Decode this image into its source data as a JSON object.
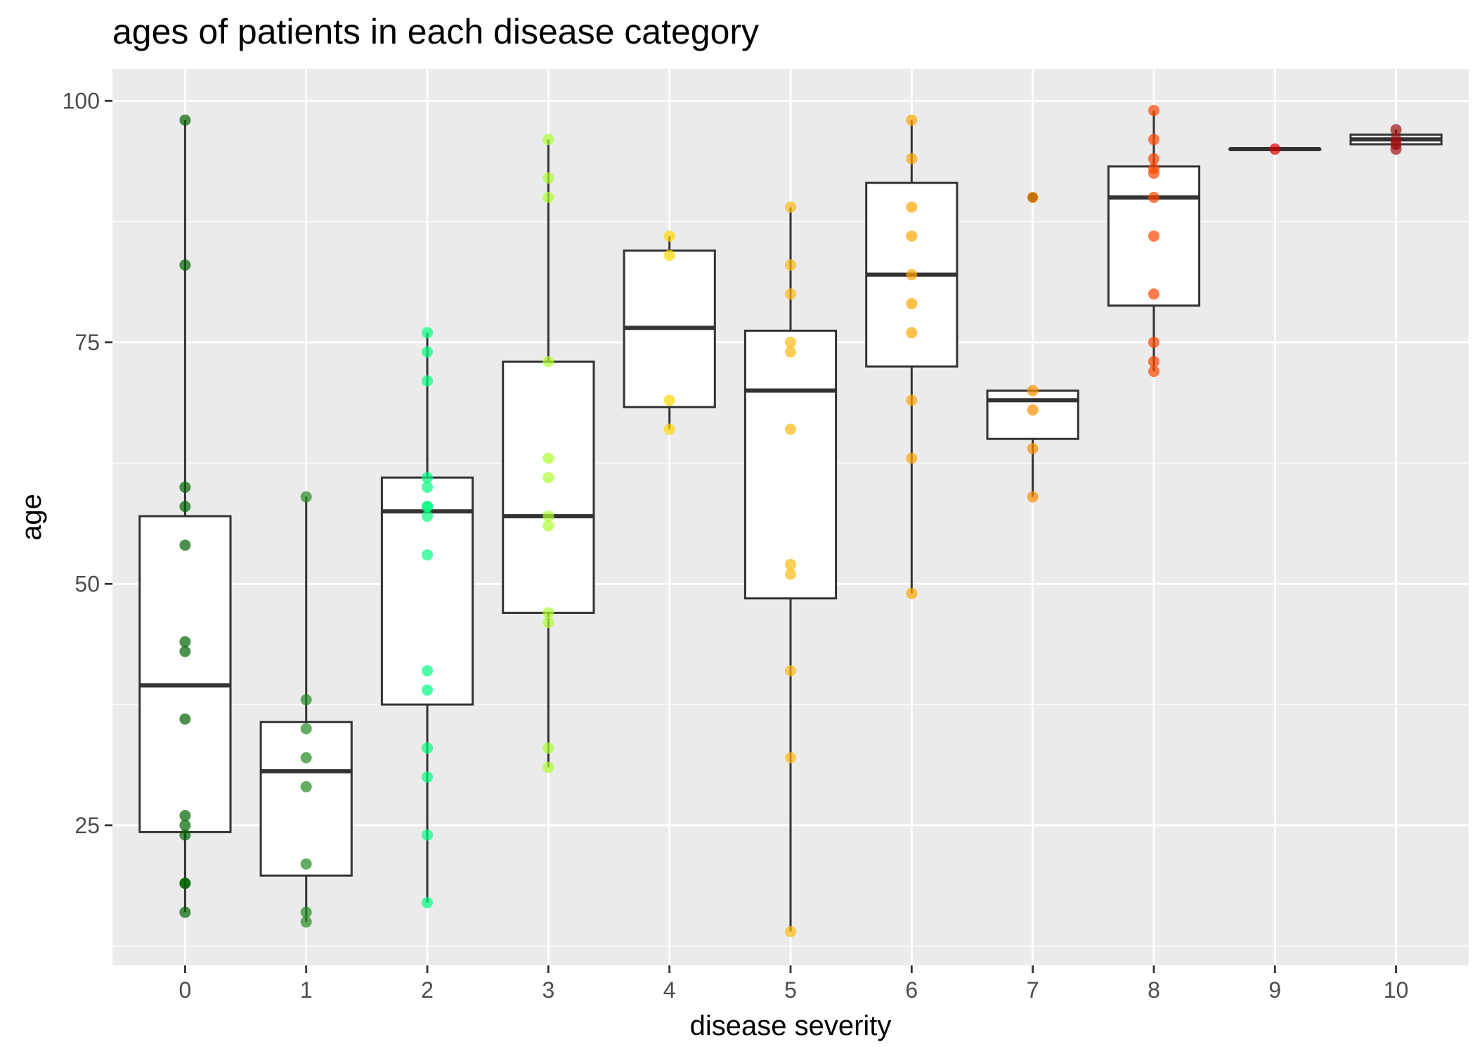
{
  "chart_data": {
    "type": "box",
    "title": "ages of patients in each disease category",
    "xlabel": "disease severity",
    "ylabel": "age",
    "categories": [
      "0",
      "1",
      "2",
      "3",
      "4",
      "5",
      "6",
      "7",
      "8",
      "9",
      "10"
    ],
    "y_ticks": [
      25,
      50,
      75,
      100
    ],
    "ylim": [
      10.5,
      103.3
    ],
    "grid": true,
    "legend": "none",
    "boxes": [
      {
        "category": "0",
        "q1": 24.3,
        "median": 39.5,
        "q3": 57,
        "whisker_low": 16,
        "whisker_high": 98
      },
      {
        "category": "1",
        "q1": 19.8,
        "median": 30.6,
        "q3": 35.7,
        "whisker_low": 15,
        "whisker_high": 59
      },
      {
        "category": "2",
        "q1": 37.5,
        "median": 57.5,
        "q3": 61,
        "whisker_low": 17,
        "whisker_high": 76
      },
      {
        "category": "3",
        "q1": 47,
        "median": 57,
        "q3": 73,
        "whisker_low": 31,
        "whisker_high": 96
      },
      {
        "category": "4",
        "q1": 68.3,
        "median": 76.5,
        "q3": 84.5,
        "whisker_low": 66,
        "whisker_high": 86
      },
      {
        "category": "5",
        "q1": 48.5,
        "median": 70,
        "q3": 76.2,
        "whisker_low": 14,
        "whisker_high": 89
      },
      {
        "category": "6",
        "q1": 72.5,
        "median": 82,
        "q3": 91.5,
        "whisker_low": 49,
        "whisker_high": 98
      },
      {
        "category": "7",
        "q1": 65,
        "median": 69,
        "q3": 70,
        "whisker_low": 59,
        "whisker_high": 70,
        "outliers": [
          90
        ]
      },
      {
        "category": "8",
        "q1": 78.8,
        "median": 90,
        "q3": 93.2,
        "whisker_low": 72,
        "whisker_high": 99
      },
      {
        "category": "9",
        "q1": 95,
        "median": 95,
        "q3": 95,
        "whisker_low": 95,
        "whisker_high": 95
      },
      {
        "category": "10",
        "q1": 95.5,
        "median": 96,
        "q3": 96.5,
        "whisker_low": 95,
        "whisker_high": 97
      }
    ],
    "points": [
      {
        "category": "0",
        "color": "#006400",
        "ages": [
          98,
          83,
          60,
          58,
          54,
          44,
          43,
          36,
          26,
          25,
          24,
          19,
          19,
          16
        ]
      },
      {
        "category": "1",
        "color": "#228b22",
        "ages": [
          59,
          38,
          35,
          32,
          29,
          21,
          16,
          15
        ]
      },
      {
        "category": "2",
        "color": "#00ff7f",
        "ages": [
          76,
          74,
          71,
          61,
          60,
          58,
          58,
          57,
          53,
          41,
          39,
          33,
          30,
          24,
          17
        ]
      },
      {
        "category": "3",
        "color": "#adff2f",
        "ages": [
          96,
          92,
          90,
          73,
          63,
          61,
          57,
          56,
          47,
          46,
          33,
          31
        ]
      },
      {
        "category": "4",
        "color": "#ffd700",
        "ages": [
          86,
          84,
          69,
          66
        ]
      },
      {
        "category": "5",
        "color": "#ffb90f",
        "ages": [
          89,
          83,
          80,
          75,
          74,
          66,
          52,
          51,
          41,
          32,
          14
        ]
      },
      {
        "category": "6",
        "color": "#ffa500",
        "ages": [
          98,
          94,
          89,
          86,
          82,
          79,
          76,
          69,
          63,
          49
        ]
      },
      {
        "category": "7",
        "color": "#ff8c00",
        "ages": [
          90,
          70,
          68,
          64,
          59
        ]
      },
      {
        "category": "8",
        "color": "#ff4500",
        "ages": [
          99,
          96,
          94,
          93,
          92.5,
          90,
          86,
          80,
          75,
          73,
          72
        ]
      },
      {
        "category": "9",
        "color": "#dd0000",
        "ages": [
          95
        ]
      },
      {
        "category": "10",
        "color": "#a01010",
        "ages": [
          97,
          96,
          95.5,
          95
        ]
      }
    ]
  }
}
